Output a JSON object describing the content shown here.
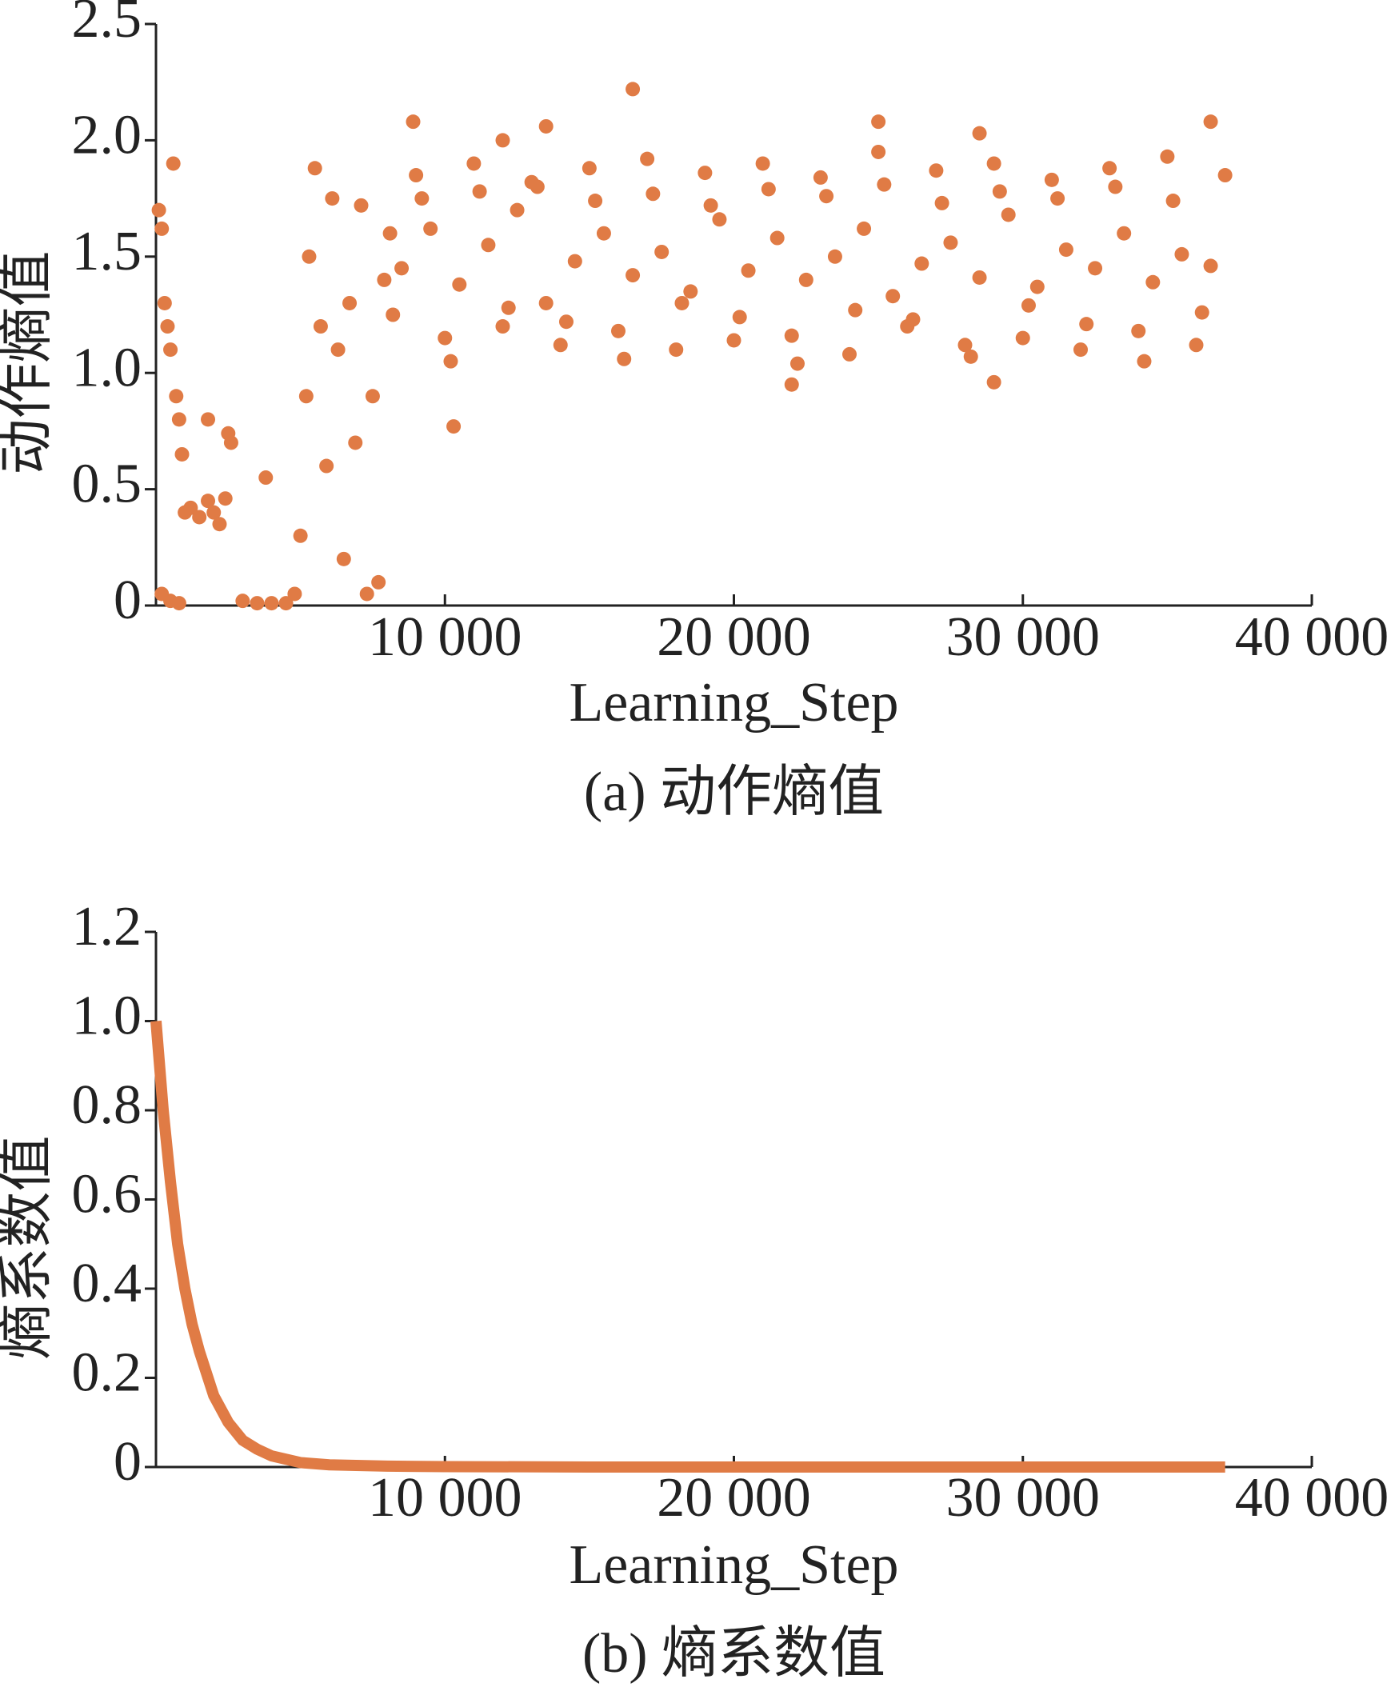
{
  "chart_data": [
    {
      "type": "scatter",
      "caption": "(a) 动作熵值",
      "x_label": "Learning_Step",
      "y_label": "动作熵值",
      "color": "#e07b45",
      "xlim": [
        0,
        40000
      ],
      "ylim": [
        0,
        2.5
      ],
      "xticks": [
        {
          "value": 10000,
          "label": "10 000"
        },
        {
          "value": 20000,
          "label": "20 000"
        },
        {
          "value": 30000,
          "label": "30 000"
        },
        {
          "value": 40000,
          "label": "40 000"
        }
      ],
      "yticks": [
        0,
        0.5,
        {
          "value": 1,
          "label": "1.0"
        },
        1.5,
        {
          "value": 2,
          "label": "2.0"
        },
        2.5
      ],
      "x": [
        100,
        200,
        300,
        400,
        500,
        600,
        700,
        800,
        900,
        1000,
        200,
        500,
        800,
        1200,
        1500,
        1800,
        2000,
        2200,
        2400,
        2600,
        2500,
        1800,
        3000,
        3500,
        4000,
        4500,
        3800,
        4800,
        5000,
        5200,
        5300,
        5500,
        5700,
        5900,
        6100,
        6300,
        6500,
        6700,
        6900,
        7100,
        7300,
        7500,
        7700,
        7900,
        8100,
        8500,
        9500,
        10500,
        11500,
        12500,
        13500,
        14500,
        15500,
        16500,
        17500,
        18500,
        19500,
        20500,
        21500,
        22500,
        23500,
        24500,
        25500,
        26500,
        27500,
        28500,
        29500,
        30500,
        31500,
        32500,
        33500,
        34500,
        35500,
        36500,
        9000,
        10000,
        11000,
        12000,
        13000,
        14000,
        15000,
        16000,
        17000,
        18000,
        19000,
        20000,
        21000,
        22000,
        23000,
        24000,
        25000,
        26000,
        27000,
        28000,
        29000,
        30000,
        31000,
        32000,
        33000,
        34000,
        35000,
        36000,
        37000,
        8200,
        9200,
        10200,
        11200,
        12200,
        13200,
        14200,
        15200,
        16200,
        17200,
        18200,
        19200,
        20200,
        21200,
        22200,
        23200,
        24200,
        25200,
        26200,
        27200,
        28200,
        29200,
        30200,
        31200,
        32200,
        33200,
        34200,
        35200,
        36200,
        8900,
        13500,
        16500,
        25000,
        28500,
        36500,
        10300,
        22000,
        29000,
        12000
      ],
      "values": [
        1.7,
        1.62,
        1.3,
        1.2,
        1.1,
        1.9,
        0.9,
        0.8,
        0.65,
        0.4,
        0.05,
        0.02,
        0.01,
        0.42,
        0.38,
        0.45,
        0.4,
        0.35,
        0.46,
        0.7,
        0.74,
        0.8,
        0.02,
        0.01,
        0.01,
        0.01,
        0.55,
        0.05,
        0.3,
        0.9,
        1.5,
        1.88,
        1.2,
        0.6,
        1.75,
        1.1,
        0.2,
        1.3,
        0.7,
        1.72,
        0.05,
        0.9,
        0.1,
        1.4,
        1.6,
        1.45,
        1.62,
        1.38,
        1.55,
        1.7,
        1.3,
        1.48,
        1.6,
        1.42,
        1.52,
        1.35,
        1.66,
        1.44,
        1.58,
        1.4,
        1.5,
        1.62,
        1.33,
        1.47,
        1.56,
        1.41,
        1.68,
        1.37,
        1.53,
        1.45,
        1.6,
        1.39,
        1.51,
        1.46,
        1.85,
        1.15,
        1.9,
        1.2,
        1.82,
        1.12,
        1.88,
        1.18,
        1.92,
        1.1,
        1.86,
        1.14,
        1.9,
        1.16,
        1.84,
        1.08,
        1.95,
        1.2,
        1.87,
        1.12,
        1.9,
        1.15,
        1.83,
        1.1,
        1.88,
        1.18,
        1.93,
        1.12,
        1.85,
        1.25,
        1.75,
        1.05,
        1.78,
        1.28,
        1.8,
        1.22,
        1.74,
        1.06,
        1.77,
        1.3,
        1.72,
        1.24,
        1.79,
        1.04,
        1.76,
        1.27,
        1.81,
        1.23,
        1.73,
        1.07,
        1.78,
        1.29,
        1.75,
        1.21,
        1.8,
        1.05,
        1.74,
        1.26,
        2.08,
        2.06,
        2.22,
        2.08,
        2.03,
        2.08,
        0.77,
        0.95,
        0.96,
        2.0
      ]
    },
    {
      "type": "line",
      "caption": "(b) 熵系数值",
      "x_label": "Learning_Step",
      "y_label": "熵系数值",
      "color": "#e07b45",
      "xlim": [
        0,
        40000
      ],
      "ylim": [
        0,
        1.2
      ],
      "xticks": [
        {
          "value": 10000,
          "label": "10 000"
        },
        {
          "value": 20000,
          "label": "20 000"
        },
        {
          "value": 30000,
          "label": "30 000"
        },
        {
          "value": 40000,
          "label": "40 000"
        }
      ],
      "yticks": [
        0,
        0.2,
        0.4,
        0.6,
        0.8,
        {
          "value": 1,
          "label": "1.0"
        },
        1.2
      ],
      "x": [
        0,
        250,
        500,
        750,
        1000,
        1250,
        1500,
        2000,
        2500,
        3000,
        3500,
        4000,
        5000,
        6000,
        8000,
        10000,
        15000,
        20000,
        25000,
        30000,
        35000,
        37000
      ],
      "values": [
        1.0,
        0.8,
        0.64,
        0.5,
        0.4,
        0.32,
        0.26,
        0.16,
        0.1,
        0.06,
        0.04,
        0.025,
        0.01,
        0.005,
        0.002,
        0.001,
        0,
        0,
        0,
        0,
        0,
        0
      ]
    }
  ]
}
